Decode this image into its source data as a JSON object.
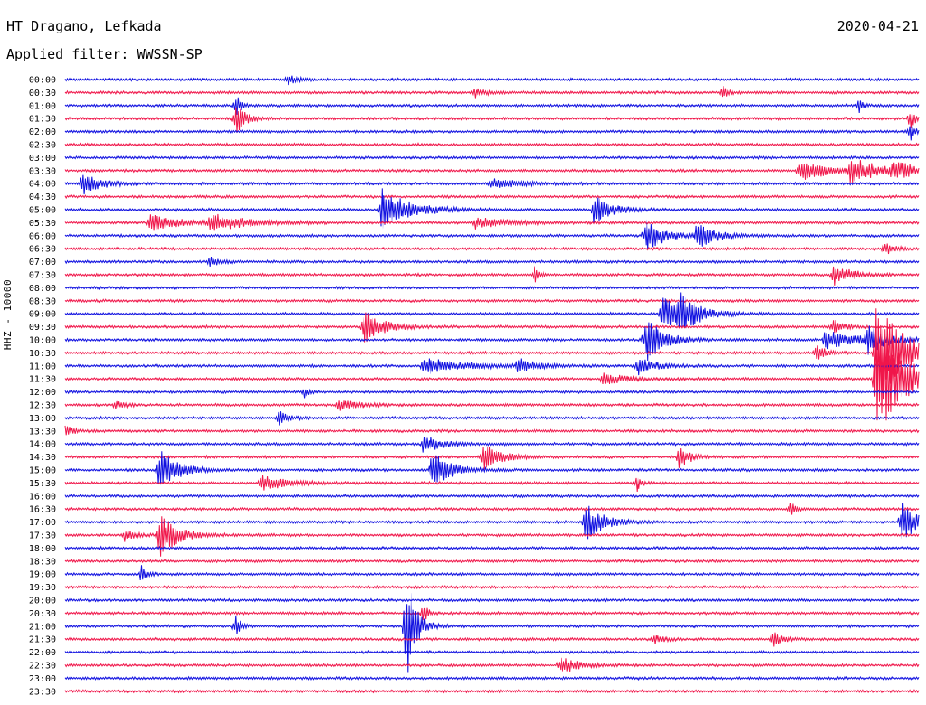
{
  "header": {
    "station": "HT Dragano, Lefkada",
    "date": "2020-04-21",
    "filter": "Applied filter: WWSSN-SP"
  },
  "channel_label": "HHZ - 10000",
  "chart_data": {
    "type": "line",
    "title": "HT Dragano, Lefkada",
    "subtitle": "Applied filter: WWSSN-SP",
    "ylabel": "HHZ - 10000",
    "colors": {
      "odd": "#1010e0",
      "even": "#f0164a"
    },
    "rows": [
      "00:00",
      "00:30",
      "01:00",
      "01:30",
      "02:00",
      "02:30",
      "03:00",
      "03:30",
      "04:00",
      "04:30",
      "05:00",
      "05:30",
      "06:00",
      "06:30",
      "07:00",
      "07:30",
      "08:00",
      "08:30",
      "09:00",
      "09:30",
      "10:00",
      "10:30",
      "11:00",
      "11:30",
      "12:00",
      "12:30",
      "13:00",
      "13:30",
      "14:00",
      "14:30",
      "15:00",
      "15:30",
      "16:00",
      "16:30",
      "17:00",
      "17:30",
      "18:00",
      "18:30",
      "19:00",
      "19:30",
      "20:00",
      "20:30",
      "21:00",
      "21:30",
      "22:00",
      "22:30",
      "23:00",
      "23:30"
    ],
    "events": [
      {
        "row": 0,
        "t": 0.26,
        "amp": 6,
        "dur": 0.01
      },
      {
        "row": 1,
        "t": 0.48,
        "amp": 6,
        "dur": 0.01
      },
      {
        "row": 1,
        "t": 0.77,
        "amp": 8,
        "dur": 0.005
      },
      {
        "row": 2,
        "t": 0.2,
        "amp": 14,
        "dur": 0.005
      },
      {
        "row": 2,
        "t": 0.93,
        "amp": 8,
        "dur": 0.005
      },
      {
        "row": 3,
        "t": 0.2,
        "amp": 18,
        "dur": 0.01
      },
      {
        "row": 3,
        "t": 0.99,
        "amp": 14,
        "dur": 0.005
      },
      {
        "row": 4,
        "t": 0.99,
        "amp": 10,
        "dur": 0.005
      },
      {
        "row": 7,
        "t": 0.86,
        "amp": 12,
        "dur": 0.03
      },
      {
        "row": 7,
        "t": 0.92,
        "amp": 14,
        "dur": 0.03
      },
      {
        "row": 7,
        "t": 0.97,
        "amp": 12,
        "dur": 0.02
      },
      {
        "row": 8,
        "t": 0.02,
        "amp": 12,
        "dur": 0.02
      },
      {
        "row": 8,
        "t": 0.5,
        "amp": 6,
        "dur": 0.03
      },
      {
        "row": 10,
        "t": 0.37,
        "amp": 24,
        "dur": 0.03
      },
      {
        "row": 10,
        "t": 0.62,
        "amp": 16,
        "dur": 0.02
      },
      {
        "row": 11,
        "t": 0.1,
        "amp": 10,
        "dur": 0.03
      },
      {
        "row": 11,
        "t": 0.17,
        "amp": 10,
        "dur": 0.04
      },
      {
        "row": 11,
        "t": 0.48,
        "amp": 6,
        "dur": 0.04
      },
      {
        "row": 12,
        "t": 0.68,
        "amp": 18,
        "dur": 0.02
      },
      {
        "row": 12,
        "t": 0.74,
        "amp": 14,
        "dur": 0.02
      },
      {
        "row": 13,
        "t": 0.96,
        "amp": 8,
        "dur": 0.01
      },
      {
        "row": 14,
        "t": 0.17,
        "amp": 6,
        "dur": 0.01
      },
      {
        "row": 15,
        "t": 0.55,
        "amp": 10,
        "dur": 0.005
      },
      {
        "row": 15,
        "t": 0.9,
        "amp": 12,
        "dur": 0.02
      },
      {
        "row": 18,
        "t": 0.7,
        "amp": 22,
        "dur": 0.02
      },
      {
        "row": 18,
        "t": 0.72,
        "amp": 18,
        "dur": 0.02
      },
      {
        "row": 19,
        "t": 0.35,
        "amp": 20,
        "dur": 0.02
      },
      {
        "row": 19,
        "t": 0.9,
        "amp": 10,
        "dur": 0.01
      },
      {
        "row": 20,
        "t": 0.68,
        "amp": 26,
        "dur": 0.02
      },
      {
        "row": 20,
        "t": 0.89,
        "amp": 10,
        "dur": 0.04
      },
      {
        "row": 20,
        "t": 0.94,
        "amp": 14,
        "dur": 0.02
      },
      {
        "row": 21,
        "t": 0.88,
        "amp": 10,
        "dur": 0.01
      },
      {
        "row": 21,
        "t": 0.95,
        "amp": 60,
        "dur": 0.03
      },
      {
        "row": 22,
        "t": 0.42,
        "amp": 10,
        "dur": 0.04
      },
      {
        "row": 22,
        "t": 0.53,
        "amp": 8,
        "dur": 0.02
      },
      {
        "row": 22,
        "t": 0.67,
        "amp": 10,
        "dur": 0.02
      },
      {
        "row": 23,
        "t": 0.63,
        "amp": 6,
        "dur": 0.03
      },
      {
        "row": 23,
        "t": 0.95,
        "amp": 70,
        "dur": 0.03
      },
      {
        "row": 24,
        "t": 0.28,
        "amp": 6,
        "dur": 0.005
      },
      {
        "row": 25,
        "t": 0.06,
        "amp": 6,
        "dur": 0.01
      },
      {
        "row": 25,
        "t": 0.32,
        "amp": 8,
        "dur": 0.02
      },
      {
        "row": 26,
        "t": 0.25,
        "amp": 8,
        "dur": 0.01
      },
      {
        "row": 27,
        "t": 0.0,
        "amp": 6,
        "dur": 0.01
      },
      {
        "row": 28,
        "t": 0.42,
        "amp": 10,
        "dur": 0.02
      },
      {
        "row": 29,
        "t": 0.49,
        "amp": 14,
        "dur": 0.02
      },
      {
        "row": 29,
        "t": 0.72,
        "amp": 14,
        "dur": 0.01
      },
      {
        "row": 30,
        "t": 0.11,
        "amp": 24,
        "dur": 0.02
      },
      {
        "row": 30,
        "t": 0.43,
        "amp": 22,
        "dur": 0.02
      },
      {
        "row": 31,
        "t": 0.23,
        "amp": 8,
        "dur": 0.03
      },
      {
        "row": 31,
        "t": 0.67,
        "amp": 10,
        "dur": 0.005
      },
      {
        "row": 33,
        "t": 0.85,
        "amp": 8,
        "dur": 0.005
      },
      {
        "row": 34,
        "t": 0.61,
        "amp": 20,
        "dur": 0.02
      },
      {
        "row": 34,
        "t": 0.98,
        "amp": 22,
        "dur": 0.02
      },
      {
        "row": 35,
        "t": 0.07,
        "amp": 8,
        "dur": 0.01
      },
      {
        "row": 35,
        "t": 0.11,
        "amp": 26,
        "dur": 0.02
      },
      {
        "row": 38,
        "t": 0.09,
        "amp": 14,
        "dur": 0.005
      },
      {
        "row": 41,
        "t": 0.42,
        "amp": 10,
        "dur": 0.005
      },
      {
        "row": 42,
        "t": 0.2,
        "amp": 14,
        "dur": 0.005
      },
      {
        "row": 42,
        "t": 0.4,
        "amp": 60,
        "dur": 0.01
      },
      {
        "row": 43,
        "t": 0.69,
        "amp": 6,
        "dur": 0.01
      },
      {
        "row": 43,
        "t": 0.83,
        "amp": 8,
        "dur": 0.01
      },
      {
        "row": 45,
        "t": 0.58,
        "amp": 10,
        "dur": 0.02
      }
    ]
  }
}
